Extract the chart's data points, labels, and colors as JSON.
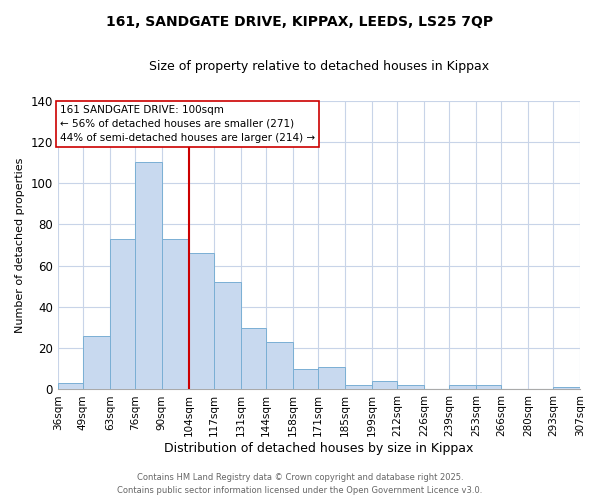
{
  "title": "161, SANDGATE DRIVE, KIPPAX, LEEDS, LS25 7QP",
  "subtitle": "Size of property relative to detached houses in Kippax",
  "xlabel": "Distribution of detached houses by size in Kippax",
  "ylabel": "Number of detached properties",
  "bin_labels": [
    "36sqm",
    "49sqm",
    "63sqm",
    "76sqm",
    "90sqm",
    "104sqm",
    "117sqm",
    "131sqm",
    "144sqm",
    "158sqm",
    "171sqm",
    "185sqm",
    "199sqm",
    "212sqm",
    "226sqm",
    "239sqm",
    "253sqm",
    "266sqm",
    "280sqm",
    "293sqm",
    "307sqm"
  ],
  "bin_values": [
    3,
    26,
    73,
    110,
    73,
    66,
    52,
    30,
    23,
    10,
    11,
    2,
    4,
    2,
    0,
    2,
    2,
    0,
    0,
    1
  ],
  "bar_color": "#c8d9ef",
  "bar_edge_color": "#7aafd4",
  "vline_color": "#cc0000",
  "vline_x_label": "104sqm",
  "ylim": [
    0,
    140
  ],
  "yticks": [
    0,
    20,
    40,
    60,
    80,
    100,
    120,
    140
  ],
  "annotation_title": "161 SANDGATE DRIVE: 100sqm",
  "annotation_line1": "← 56% of detached houses are smaller (271)",
  "annotation_line2": "44% of semi-detached houses are larger (214) →",
  "annotation_box_color": "#ffffff",
  "annotation_box_edge": "#cc0000",
  "footer1": "Contains HM Land Registry data © Crown copyright and database right 2025.",
  "footer2": "Contains public sector information licensed under the Open Government Licence v3.0.",
  "background_color": "#ffffff",
  "grid_color": "#c8d4e8"
}
